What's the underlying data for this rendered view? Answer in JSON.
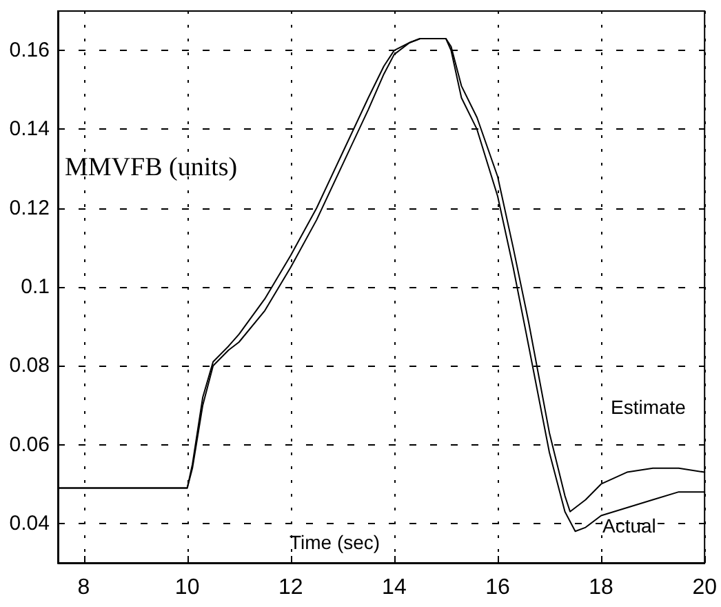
{
  "chart_data": {
    "type": "line",
    "xlabel": "Time (sec)",
    "ylabel": "MMVFB (units)",
    "xlim": [
      7.5,
      20
    ],
    "xticks": [
      8,
      10,
      12,
      14,
      16,
      18,
      20
    ],
    "ylim": [
      0.03,
      0.17
    ],
    "yticks": [
      0.04,
      0.06,
      0.08,
      0.1,
      0.12,
      0.14,
      0.16
    ],
    "grid": true,
    "line_style": "solid",
    "marker": "none",
    "series": [
      {
        "color": "#000000",
        "x": [
          7.5,
          10,
          10.1,
          10.3,
          10.5,
          10.8,
          11,
          11.5,
          12,
          12.5,
          13,
          13.5,
          13.8,
          14,
          14.3,
          14.5,
          15,
          15.1,
          15.3,
          15.6,
          16,
          16.3,
          16.6,
          17,
          17.3,
          17.5,
          17.7,
          18,
          18.5,
          19,
          19.5,
          20
        ],
        "values": [
          0.049,
          0.049,
          0.055,
          0.072,
          0.081,
          0.085,
          0.088,
          0.097,
          0.108,
          0.12,
          0.134,
          0.148,
          0.156,
          0.16,
          0.162,
          0.163,
          0.163,
          0.16,
          0.148,
          0.14,
          0.123,
          0.105,
          0.085,
          0.058,
          0.043,
          0.038,
          0.039,
          0.042,
          0.044,
          0.046,
          0.048,
          0.048
        ]
      },
      {
        "color": "#000000",
        "x": [
          7.5,
          10,
          10.1,
          10.3,
          10.5,
          10.8,
          11,
          11.5,
          12,
          12.5,
          13,
          13.5,
          13.8,
          14,
          14.3,
          14.5,
          15,
          15.1,
          15.3,
          15.6,
          16,
          16.3,
          16.6,
          17,
          17.3,
          17.4,
          17.7,
          18,
          18.5,
          19,
          19.5,
          20
        ],
        "values": [
          0.049,
          0.049,
          0.054,
          0.07,
          0.08,
          0.084,
          0.086,
          0.094,
          0.105,
          0.117,
          0.131,
          0.145,
          0.154,
          0.159,
          0.162,
          0.163,
          0.163,
          0.161,
          0.151,
          0.143,
          0.128,
          0.11,
          0.091,
          0.063,
          0.047,
          0.043,
          0.046,
          0.05,
          0.053,
          0.054,
          0.054,
          0.053
        ]
      }
    ],
    "annotations": [
      "Estimate",
      "Actual"
    ]
  }
}
